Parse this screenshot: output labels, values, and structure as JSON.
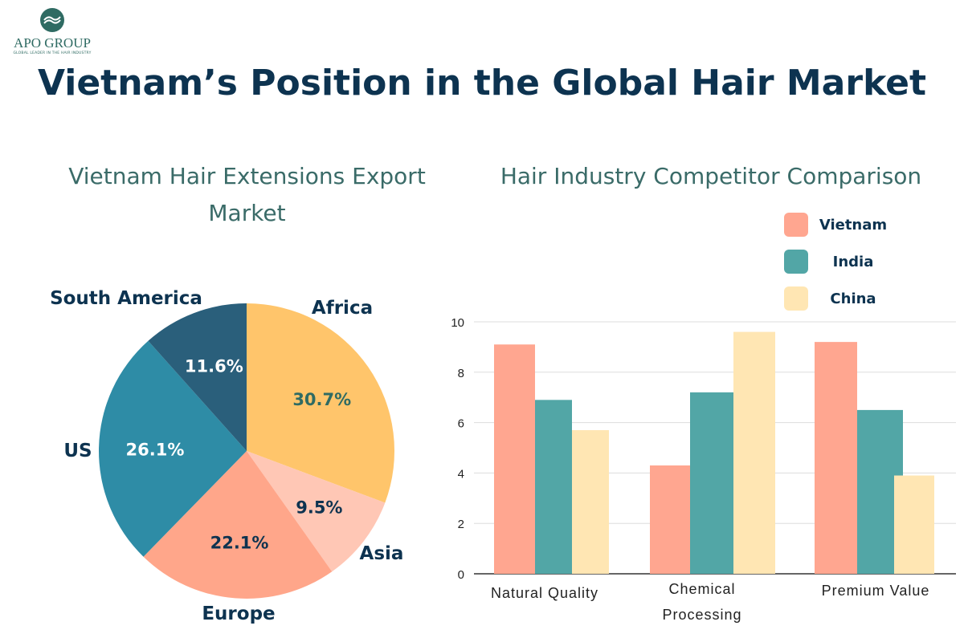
{
  "logo": {
    "name": "APO GROUP",
    "tagline": "GLOBAL LEADER IN THE HAIR INDUSTRY"
  },
  "title": "Vietnam’s Position in the Global Hair Market",
  "chart_data": [
    {
      "type": "pie",
      "title": "Vietnam Hair Extensions Export Market",
      "slices": [
        {
          "label": "Africa",
          "value": 30.7,
          "display": "30.7%",
          "color": "#FFC56B"
        },
        {
          "label": "Asia",
          "value": 9.5,
          "display": "9.5%",
          "color": "#FFC7B5"
        },
        {
          "label": "Europe",
          "value": 22.1,
          "display": "22.1%",
          "color": "#FFA68A"
        },
        {
          "label": "US",
          "value": 26.1,
          "display": "26.1%",
          "color": "#2E8CA6"
        },
        {
          "label": "South America",
          "value": 11.6,
          "display": "11.6%",
          "color": "#2A5F7B"
        }
      ]
    },
    {
      "type": "bar",
      "title": "Hair Industry Competitor Comparison",
      "categories": [
        "Natural Quality",
        "Chemical Processing",
        "Premium Value"
      ],
      "series": [
        {
          "name": "Vietnam",
          "values": [
            9.1,
            4.3,
            9.2
          ],
          "color": "#FFA690"
        },
        {
          "name": "India",
          "values": [
            6.9,
            7.2,
            6.5
          ],
          "color": "#52A6A6"
        },
        {
          "name": "China",
          "values": [
            5.7,
            9.6,
            3.9
          ],
          "color": "#FFE6B3"
        }
      ],
      "ylim": [
        0,
        10
      ],
      "yticks": [
        "0",
        "2",
        "4",
        "6",
        "8",
        "10"
      ],
      "grid": true,
      "legend": "top-right"
    }
  ]
}
